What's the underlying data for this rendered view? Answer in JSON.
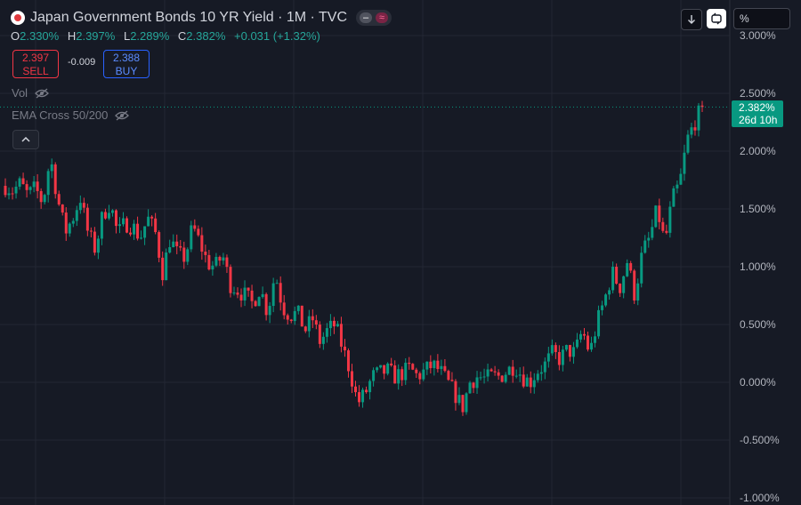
{
  "header": {
    "title": "Japan Government Bonds 10 YR Yield · 1M · TVC",
    "ohlc": [
      {
        "key": "O",
        "value": "2.330%"
      },
      {
        "key": "H",
        "value": "2.397%"
      },
      {
        "key": "L",
        "value": "2.289%"
      },
      {
        "key": "C",
        "value": "2.382%"
      },
      {
        "key": "",
        "value": "+0.031 (+1.32%)"
      }
    ]
  },
  "trade": {
    "sell_price": "2.397",
    "sell_label": "SELL",
    "spread": "-0.009",
    "buy_price": "2.388",
    "buy_label": "BUY"
  },
  "indicators": [
    {
      "name": "Vol",
      "icon": "eye-off-icon"
    },
    {
      "name": "EMA Cross 50/200",
      "icon": "eye-off-icon"
    }
  ],
  "toolbar": {
    "download_icon": "arrow-down-icon",
    "sync_icon": "sync-icon",
    "scale_value": "%"
  },
  "price_tag": {
    "value": "2.382%",
    "countdown": "26d 10h"
  },
  "colors": {
    "up": "#089981",
    "down": "#f23645",
    "background": "#161a25",
    "grid": "#232733",
    "axis_text": "#b2b5be"
  },
  "chart_data": {
    "type": "candlestick",
    "title": "Japan Government Bonds 10 YR Yield · 1M · TVC",
    "ylabel": "",
    "y_axis": {
      "ticks": [
        "3.000%",
        "2.500%",
        "2.000%",
        "1.500%",
        "1.000%",
        "0.500%",
        "0.000%",
        "-0.500%",
        "-1.000%"
      ],
      "range": [
        -1.0,
        3.07
      ],
      "position": "right"
    },
    "grid": true,
    "current_price": 2.382,
    "close_path": [
      1.7,
      1.66,
      1.72,
      1.62,
      1.68,
      1.55,
      1.95,
      1.58,
      1.3,
      1.42,
      1.6,
      1.3,
      1.15,
      1.45,
      1.55,
      1.28,
      1.38,
      1.35,
      1.25,
      1.42,
      1.3,
      0.95,
      1.25,
      1.1,
      1.08,
      1.35,
      1.2,
      1.03,
      1.0,
      1.1,
      0.85,
      0.8,
      0.75,
      0.68,
      0.82,
      0.6,
      0.95,
      0.65,
      0.58,
      0.6,
      0.45,
      0.55,
      0.35,
      0.45,
      0.5,
      0.3,
      0.1,
      -0.18,
      -0.1,
      0.05,
      0.08,
      0.1,
      0.05,
      0.08,
      0.12,
      0.05,
      0.1,
      0.15,
      0.1,
      0.0,
      -0.1,
      -0.22,
      0.0,
      0.05,
      0.03,
      0.05,
      0.05,
      0.1,
      0.15,
      0.05,
      0.0,
      0.1,
      0.15,
      0.25,
      0.2,
      0.28,
      0.25,
      0.45,
      0.25,
      0.52,
      0.72,
      0.95,
      0.82,
      1.05,
      0.75,
      1.12,
      1.25,
      1.5,
      1.2,
      1.58,
      1.72,
      2.1,
      2.25,
      2.38
    ]
  }
}
